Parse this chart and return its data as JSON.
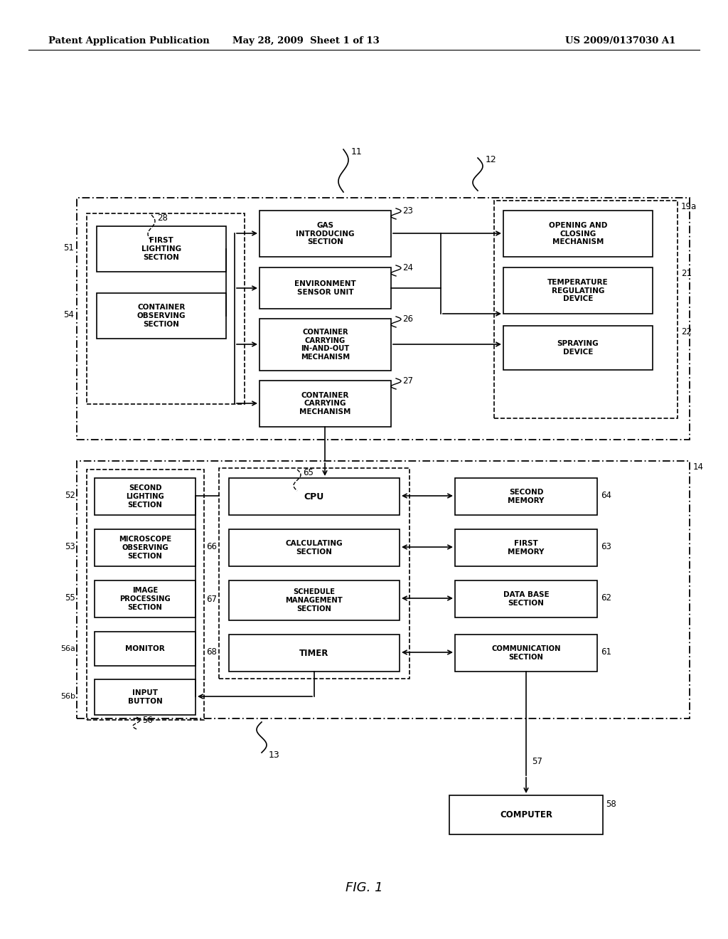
{
  "background_color": "#ffffff",
  "header_left": "Patent Application Publication",
  "header_mid": "May 28, 2009  Sheet 1 of 13",
  "header_right": "US 2009/0137030 A1",
  "footer_label": "FIG. 1",
  "fig_width": 10.24,
  "fig_height": 13.2
}
